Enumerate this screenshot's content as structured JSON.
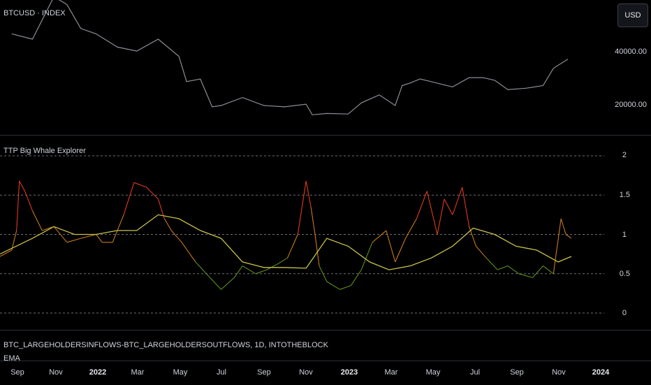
{
  "price_pane": {
    "symbol_label": "BTCUSD · INDEX",
    "currency_button": "USD",
    "y_ticks": [
      {
        "label": "40000.00",
        "value": 40000
      },
      {
        "label": "20000.00",
        "value": 20000
      }
    ]
  },
  "indicator_pane": {
    "title": "TTP Big Whale Explorer",
    "y_ticks": [
      {
        "label": "2",
        "value": 2
      },
      {
        "label": "1.5",
        "value": 1.5
      },
      {
        "label": "1",
        "value": 1
      },
      {
        "label": "0.5",
        "value": 0.5
      },
      {
        "label": "0",
        "value": 0
      }
    ]
  },
  "source_pane": {
    "source_label": "BTC_LARGEHOLDERSINFLOWS-BTC_LARGEHOLDERSOUTFLOWS, 1D, INTOTHEBLOCK",
    "ema_label": "EMA"
  },
  "x_axis": {
    "ticks": [
      {
        "label": "Sep",
        "year": false
      },
      {
        "label": "Nov",
        "year": false
      },
      {
        "label": "2022",
        "year": true
      },
      {
        "label": "Mar",
        "year": false
      },
      {
        "label": "May",
        "year": false
      },
      {
        "label": "Jul",
        "year": false
      },
      {
        "label": "Sep",
        "year": false
      },
      {
        "label": "Nov",
        "year": false
      },
      {
        "label": "2023",
        "year": true
      },
      {
        "label": "Mar",
        "year": false
      },
      {
        "label": "May",
        "year": false
      },
      {
        "label": "Jul",
        "year": false
      },
      {
        "label": "Sep",
        "year": false
      },
      {
        "label": "Nov",
        "year": false
      },
      {
        "label": "2024",
        "year": true
      }
    ]
  },
  "colors": {
    "background": "#000000",
    "price_line": "#8a8e96",
    "ratio_high": "#e0391f",
    "ratio_mid": "#c77a1e",
    "ratio_low": "#5f8f1e",
    "ema": "#c9c24a",
    "gridline": "#6b6f78"
  },
  "chart_data": [
    {
      "type": "line",
      "name": "price",
      "x": [
        "2021-09-01",
        "2021-10-01",
        "2021-11-01",
        "2021-11-20",
        "2021-12-10",
        "2022-01-01",
        "2022-02-01",
        "2022-03-01",
        "2022-04-01",
        "2022-05-01",
        "2022-05-12",
        "2022-06-01",
        "2022-06-18",
        "2022-07-01",
        "2022-08-01",
        "2022-09-01",
        "2022-10-01",
        "2022-11-01",
        "2022-11-10",
        "2022-12-01",
        "2023-01-01",
        "2023-01-20",
        "2023-02-15",
        "2023-03-10",
        "2023-03-20",
        "2023-04-01",
        "2023-04-15",
        "2023-05-01",
        "2023-06-01",
        "2023-06-25",
        "2023-07-15",
        "2023-08-01",
        "2023-08-20",
        "2023-09-15",
        "2023-10-10",
        "2023-10-25",
        "2023-11-15"
      ],
      "y": [
        47000,
        45000,
        61000,
        58000,
        49000,
        47000,
        42000,
        40500,
        45000,
        38500,
        29000,
        30000,
        19500,
        20000,
        23000,
        20000,
        19500,
        20500,
        16500,
        17000,
        16800,
        21000,
        24000,
        20000,
        27500,
        28500,
        30000,
        29000,
        27000,
        30500,
        30500,
        29500,
        26000,
        26500,
        27500,
        34000,
        37500
      ],
      "yaxis_ticks": [
        40000,
        20000
      ]
    },
    {
      "type": "line",
      "name": "ratio",
      "x": [
        "2021-08-15",
        "2021-09-01",
        "2021-09-08",
        "2021-09-12",
        "2021-09-20",
        "2021-10-01",
        "2021-10-15",
        "2021-11-01",
        "2021-11-20",
        "2021-12-10",
        "2022-01-01",
        "2022-01-10",
        "2022-01-25",
        "2022-02-10",
        "2022-02-25",
        "2022-03-15",
        "2022-04-01",
        "2022-04-10",
        "2022-04-20",
        "2022-05-05",
        "2022-05-25",
        "2022-06-15",
        "2022-07-01",
        "2022-07-20",
        "2022-08-01",
        "2022-08-20",
        "2022-09-05",
        "2022-09-20",
        "2022-10-05",
        "2022-10-20",
        "2022-11-01",
        "2022-11-08",
        "2022-11-14",
        "2022-11-20",
        "2022-12-01",
        "2022-12-20",
        "2023-01-05",
        "2023-01-20",
        "2023-02-05",
        "2023-02-25",
        "2023-03-10",
        "2023-03-25",
        "2023-04-10",
        "2023-04-25",
        "2023-05-10",
        "2023-05-20",
        "2023-06-01",
        "2023-06-15",
        "2023-06-25",
        "2023-07-05",
        "2023-07-20",
        "2023-08-05",
        "2023-08-20",
        "2023-09-05",
        "2023-09-25",
        "2023-10-10",
        "2023-10-25",
        "2023-11-05",
        "2023-11-12",
        "2023-11-20"
      ],
      "y": [
        0.72,
        0.8,
        1.05,
        1.68,
        1.55,
        1.3,
        1.05,
        1.1,
        0.9,
        0.95,
        1.0,
        0.9,
        0.9,
        1.25,
        1.66,
        1.6,
        1.45,
        1.2,
        1.05,
        0.9,
        0.65,
        0.45,
        0.3,
        0.45,
        0.6,
        0.5,
        0.55,
        0.62,
        0.7,
        1.0,
        1.68,
        1.35,
        1.0,
        0.6,
        0.4,
        0.3,
        0.35,
        0.55,
        0.9,
        1.05,
        0.65,
        0.95,
        1.2,
        1.55,
        1.0,
        1.45,
        1.25,
        1.6,
        1.1,
        0.85,
        0.7,
        0.55,
        0.6,
        0.5,
        0.45,
        0.6,
        0.5,
        1.2,
        1.0,
        0.95
      ],
      "yaxis_ticks": [
        2,
        1.5,
        1,
        0.5,
        0
      ]
    },
    {
      "type": "line",
      "name": "EMA",
      "x": [
        "2021-08-15",
        "2021-10-01",
        "2021-11-01",
        "2021-12-01",
        "2022-01-01",
        "2022-02-01",
        "2022-03-01",
        "2022-04-01",
        "2022-05-01",
        "2022-06-01",
        "2022-07-01",
        "2022-08-01",
        "2022-09-01",
        "2022-10-01",
        "2022-11-01",
        "2022-12-01",
        "2023-01-01",
        "2023-02-01",
        "2023-03-01",
        "2023-04-01",
        "2023-05-01",
        "2023-06-01",
        "2023-07-01",
        "2023-08-01",
        "2023-09-01",
        "2023-10-01",
        "2023-11-01",
        "2023-11-20"
      ],
      "y": [
        0.75,
        0.95,
        1.1,
        1.0,
        1.0,
        1.05,
        1.05,
        1.25,
        1.2,
        1.05,
        0.95,
        0.65,
        0.58,
        0.58,
        0.57,
        0.95,
        0.85,
        0.65,
        0.55,
        0.6,
        0.7,
        0.85,
        1.08,
        1.0,
        0.85,
        0.8,
        0.65,
        0.72
      ]
    }
  ]
}
